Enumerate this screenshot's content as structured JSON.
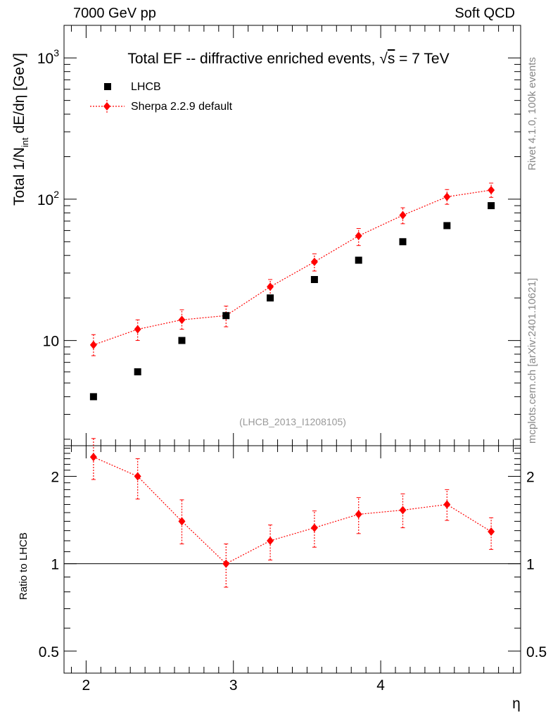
{
  "header": {
    "left": "7000 GeV pp",
    "right": "Soft QCD"
  },
  "side": {
    "rivet": "Rivet 4.1.0,  100k events",
    "mcplots": "mcplots.cern.ch [arXiv:2401.10621]"
  },
  "colors": {
    "lhcb": "#000000",
    "sherpa": "#ff0000"
  },
  "chart_data": [
    {
      "type": "scatter",
      "scale": "log",
      "title_main": "Total EF -- diffractive enriched events, ",
      "title_sqrt": "√",
      "title_s": "s",
      "title_tail": " = 7 TeV",
      "ylabel": "Total 1/N",
      "ylabel_sub": "int",
      "ylabel_tail": "  dE/dη [GeV]",
      "analysis": "(LHCB_2013_I1208105)",
      "ylim": [
        1.8,
        1700
      ],
      "xlim": [
        1.85,
        4.95
      ],
      "yticks": [
        {
          "value": 10,
          "base": "10",
          "exp": ""
        },
        {
          "value": 100,
          "base": "10",
          "exp": "2"
        },
        {
          "value": 1000,
          "base": "10",
          "exp": "3"
        }
      ],
      "legend": [
        {
          "name": "LHCB",
          "marker": "square"
        },
        {
          "name": "Sherpa 2.2.9 default",
          "marker": "diamond"
        }
      ],
      "x": [
        2.05,
        2.35,
        2.65,
        2.95,
        3.25,
        3.55,
        3.85,
        4.15,
        4.45,
        4.75
      ],
      "series": [
        {
          "name": "LHCB",
          "values": [
            4.0,
            6.0,
            10.0,
            15.0,
            20.0,
            27.0,
            37.0,
            50.0,
            65.0,
            90.0
          ]
        },
        {
          "name": "Sherpa 2.2.9 default",
          "values": [
            9.3,
            12.0,
            14.0,
            15.0,
            24.0,
            36.0,
            55.0,
            77.0,
            104.0,
            116.0
          ],
          "err_low": [
            7.8,
            10.0,
            12.0,
            12.5,
            20.5,
            31.0,
            47.0,
            67.0,
            92.0,
            103.0
          ],
          "err_high": [
            11.0,
            14.0,
            16.5,
            17.5,
            27.0,
            41.0,
            62.0,
            87.0,
            117.0,
            130.0
          ]
        }
      ]
    },
    {
      "type": "scatter",
      "scale": "log",
      "ylabel": "Ratio to LHCB",
      "xlabel": "η",
      "ylim": [
        0.42,
        2.55
      ],
      "xlim": [
        1.85,
        4.95
      ],
      "yticks": [
        {
          "value": 0.5,
          "label": "0.5"
        },
        {
          "value": 1,
          "label": "1"
        },
        {
          "value": 2,
          "label": "2"
        }
      ],
      "xticks": [
        {
          "value": 2,
          "label": "2"
        },
        {
          "value": 3,
          "label": "3"
        },
        {
          "value": 4,
          "label": "4"
        }
      ],
      "reference": 1,
      "x": [
        2.05,
        2.35,
        2.65,
        2.95,
        3.25,
        3.55,
        3.85,
        4.15,
        4.45,
        4.75
      ],
      "series": [
        {
          "name": "Sherpa 2.2.9 default / LHCB",
          "values": [
            2.33,
            2.0,
            1.4,
            1.0,
            1.2,
            1.33,
            1.48,
            1.53,
            1.6,
            1.29
          ],
          "err_low": [
            1.95,
            1.67,
            1.17,
            0.83,
            1.03,
            1.14,
            1.27,
            1.33,
            1.41,
            1.12
          ],
          "err_high": [
            2.7,
            2.3,
            1.66,
            1.17,
            1.36,
            1.52,
            1.69,
            1.74,
            1.8,
            1.44
          ]
        }
      ]
    }
  ]
}
